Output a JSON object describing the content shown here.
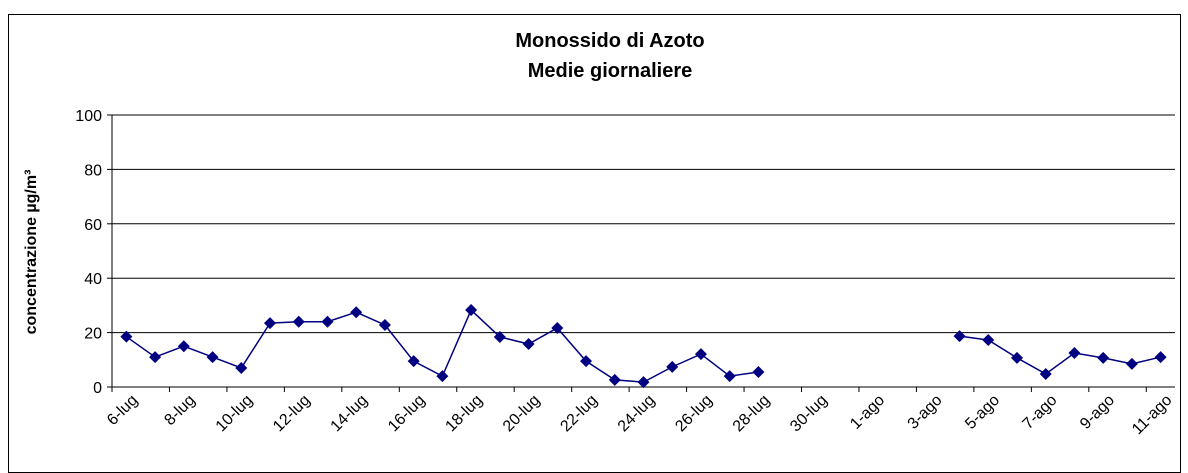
{
  "chart_data": {
    "type": "line",
    "title": "Monossido di Azoto",
    "subtitle": "Medie giornaliere",
    "y_label": "concentrazione µg/m³",
    "categories": [
      "6-lug",
      null,
      "8-lug",
      null,
      "10-lug",
      null,
      "12-lug",
      null,
      "14-lug",
      null,
      "16-lug",
      null,
      "18-lug",
      null,
      "20-lug",
      null,
      "22-lug",
      null,
      "24-lug",
      null,
      "26-lug",
      null,
      "28-lug",
      null,
      "30-lug",
      null,
      "1-ago",
      null,
      "3-ago",
      null,
      "5-ago",
      null,
      "7-ago",
      null,
      "9-ago",
      null,
      "11-ago"
    ],
    "values": [
      18.5,
      11,
      15,
      11,
      7,
      23.5,
      24,
      24,
      27.5,
      22.8,
      9.5,
      4,
      28.3,
      18.4,
      15.8,
      21.7,
      9.5,
      2.6,
      1.8,
      7.4,
      12.1,
      4,
      5.5,
      null,
      null,
      null,
      null,
      null,
      null,
      18.7,
      17.3,
      10.7,
      4.8,
      12.5,
      10.7,
      8.5,
      11
    ],
    "color": "#000080",
    "ylim": [
      0,
      100
    ],
    "yticks": [
      0,
      20,
      40,
      60,
      80,
      100
    ],
    "grid": true
  }
}
